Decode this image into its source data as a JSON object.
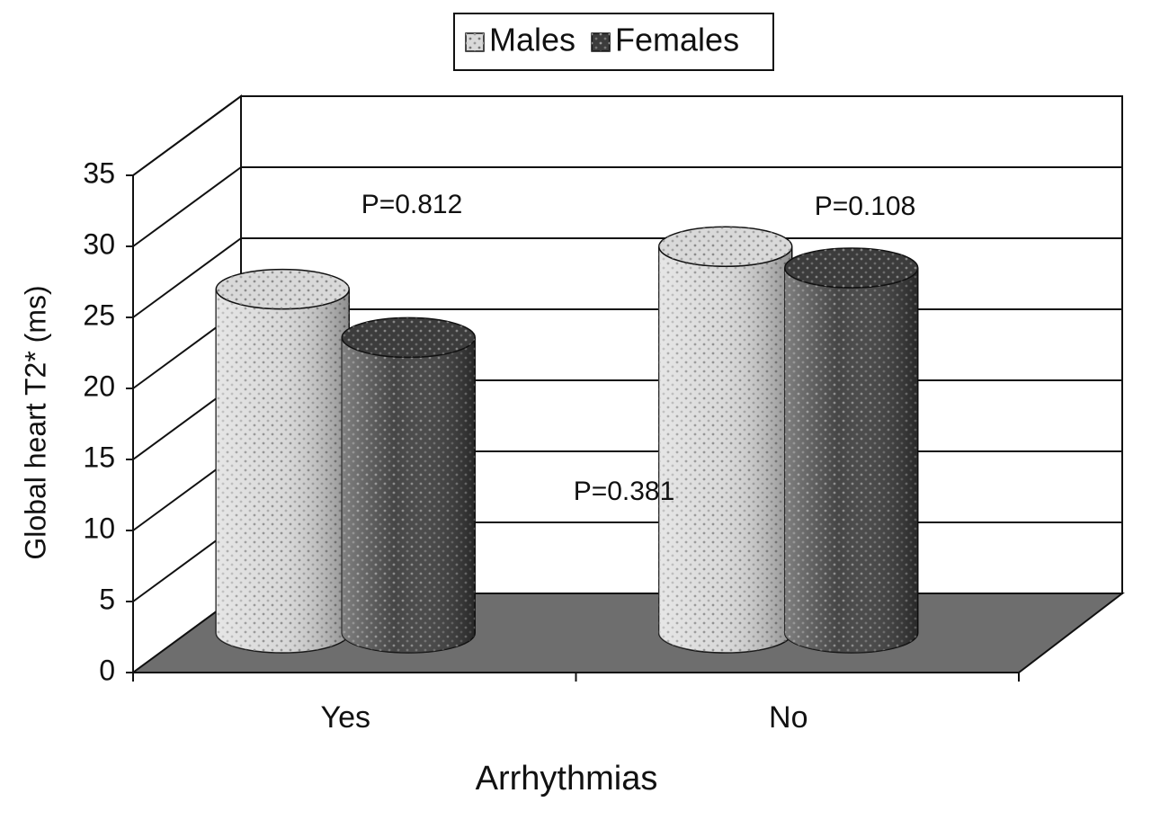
{
  "chart_data": {
    "type": "bar3d",
    "categories": [
      "Yes",
      "No"
    ],
    "series": [
      {
        "name": "Males",
        "color": "#d9d9d9",
        "values": [
          24.2,
          27.2
        ]
      },
      {
        "name": "Females",
        "color": "#3c3c3c",
        "values": [
          20.8,
          25.7
        ]
      }
    ],
    "x_label": "Arrhythmias",
    "y_label": "Global heart T2* (ms)",
    "ylim": [
      0,
      35
    ],
    "yticks": [
      0,
      5,
      10,
      15,
      20,
      25,
      30,
      35
    ],
    "grid": true,
    "legend": "top",
    "annotations": [
      "P=0.812",
      "P=0.108",
      "P=0.381"
    ]
  }
}
